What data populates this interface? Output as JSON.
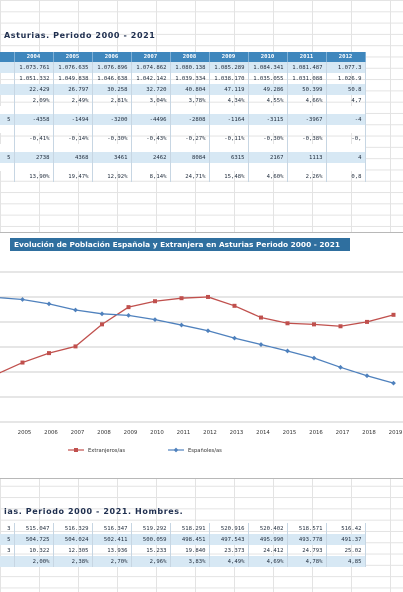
{
  "sheet": {
    "title_top": "Asturias. Periodo 2000 - 2021",
    "title_bottom": "ias. Periodo 2000 - 2021. Hombres."
  },
  "table_top": {
    "headers": [
      "",
      "2004",
      "2005",
      "2006",
      "2007",
      "2008",
      "2009",
      "2010",
      "2011",
      "2012"
    ],
    "rows": [
      {
        "band": true,
        "cells": [
          "",
          "1.073.761",
          "1.076.635",
          "1.076.896",
          "1.074.862",
          "1.080.138",
          "1.085.289",
          "1.084.341",
          "1.081.487",
          "1.077.3"
        ]
      },
      {
        "band": false,
        "cells": [
          "",
          "1.051.332",
          "1.049.838",
          "1.046.638",
          "1.042.142",
          "1.039.334",
          "1.038.170",
          "1.035.055",
          "1.031.088",
          "1.026.9"
        ]
      },
      {
        "band": true,
        "cells": [
          "",
          "22.429",
          "26.797",
          "30.258",
          "32.720",
          "40.804",
          "47.119",
          "49.286",
          "50.399",
          "50.8"
        ]
      },
      {
        "band": false,
        "cells": [
          "",
          "2,09%",
          "2,49%",
          "2,81%",
          "3,04%",
          "3,78%",
          "4,34%",
          "4,55%",
          "4,66%",
          "4,7"
        ]
      },
      {
        "gap": true,
        "cells": [
          "",
          "",
          "",
          "",
          "",
          "",
          "",
          "",
          "",
          ""
        ]
      },
      {
        "band": true,
        "cells": [
          "5",
          "-4358",
          "-1494",
          "-3200",
          "-4496",
          "-2808",
          "-1164",
          "-3115",
          "-3967",
          "-4"
        ]
      },
      {
        "gap": true,
        "cells": [
          "",
          "",
          "",
          "",
          "",
          "",
          "",
          "",
          "",
          ""
        ]
      },
      {
        "band": false,
        "cells": [
          "",
          "-0,41%",
          "-0,14%",
          "-0,30%",
          "-0,43%",
          "-0,27%",
          "-0,11%",
          "-0,30%",
          "-0,38%",
          "-0,"
        ]
      },
      {
        "gap": true,
        "cells": [
          "",
          "",
          "",
          "",
          "",
          "",
          "",
          "",
          "",
          ""
        ]
      },
      {
        "band": true,
        "cells": [
          "5",
          "2738",
          "4368",
          "3461",
          "2462",
          "8084",
          "6315",
          "2167",
          "1113",
          "4"
        ]
      },
      {
        "gap": true,
        "cells": [
          "",
          "",
          "",
          "",
          "",
          "",
          "",
          "",
          "",
          ""
        ]
      },
      {
        "band": false,
        "cells": [
          "",
          "13,90%",
          "19,47%",
          "12,92%",
          "8,14%",
          "24,71%",
          "15,48%",
          "4,60%",
          "2,26%",
          "0,8"
        ]
      }
    ]
  },
  "chart_data": {
    "type": "line",
    "title": "Evolución de Población Española y Extranjera en Asturias Periodo 2000 - 2021",
    "categories": [
      "4",
      "2005",
      "2006",
      "2007",
      "2008",
      "2009",
      "2010",
      "2011",
      "2012",
      "2013",
      "2014",
      "2015",
      "2016",
      "2017",
      "2018",
      "2019"
    ],
    "series": [
      {
        "name": "Extranjeros/as",
        "color": "#c0504d",
        "marker": "square",
        "values": [
          22429,
          26797,
          30258,
          32720,
          40804,
          47119,
          49286,
          50399,
          50853,
          47600,
          43300,
          41200,
          40800,
          40100,
          41700,
          44300
        ]
      },
      {
        "name": "Españoles/as",
        "color": "#4f81bd",
        "marker": "diamond",
        "values": [
          1051332,
          1049838,
          1046638,
          1042142,
          1039334,
          1038170,
          1035055,
          1031088,
          1026900,
          1021500,
          1016800,
          1012100,
          1006900,
          1000100,
          993900,
          988500
        ]
      }
    ],
    "legend_position": "bottom-center",
    "grid": true
  },
  "table_bottom": {
    "rows": [
      {
        "band": false,
        "cells": [
          "3",
          "515.047",
          "516.329",
          "516.347",
          "519.292",
          "518.291",
          "520.916",
          "520.402",
          "518.571",
          "516.42"
        ]
      },
      {
        "band": true,
        "cells": [
          "5",
          "504.725",
          "504.024",
          "502.411",
          "500.059",
          "498.451",
          "497.543",
          "495.990",
          "493.778",
          "491.37"
        ]
      },
      {
        "band": false,
        "cells": [
          "3",
          "10.322",
          "12.305",
          "13.936",
          "15.233",
          "19.840",
          "23.373",
          "24.412",
          "24.793",
          "25.02"
        ]
      },
      {
        "band": true,
        "cells": [
          "",
          "2,00%",
          "2,38%",
          "2,70%",
          "2,96%",
          "3,83%",
          "4,49%",
          "4,69%",
          "4,78%",
          "4,85"
        ]
      }
    ]
  }
}
